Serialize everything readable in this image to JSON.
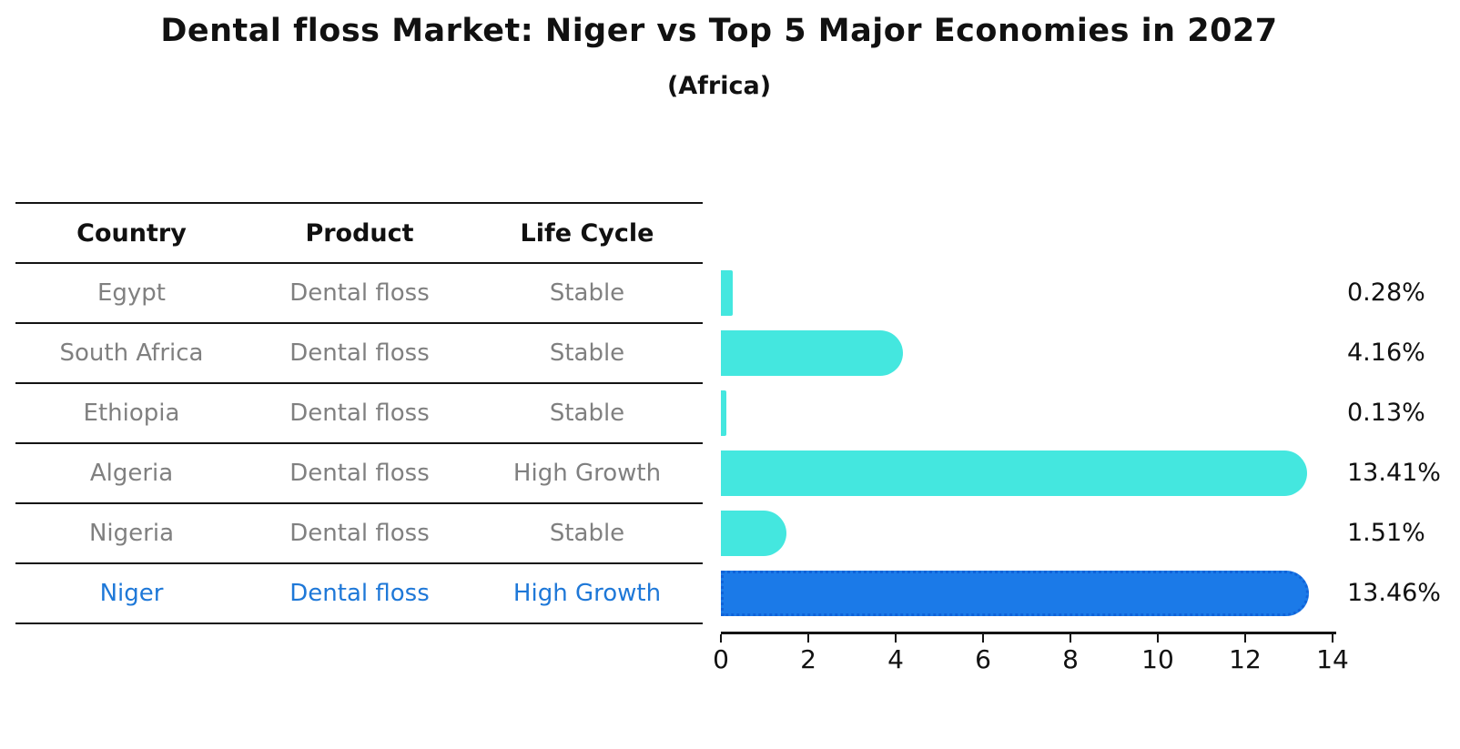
{
  "title": "Dental floss Market: Niger vs Top 5 Major Economies in 2027",
  "subtitle": "(Africa)",
  "table": {
    "headers": [
      "Country",
      "Product",
      "Life Cycle"
    ],
    "rows": [
      {
        "country": "Egypt",
        "product": "Dental floss",
        "life_cycle": "Stable",
        "highlight": false
      },
      {
        "country": "South Africa",
        "product": "Dental floss",
        "life_cycle": "Stable",
        "highlight": false
      },
      {
        "country": "Ethiopia",
        "product": "Dental floss",
        "life_cycle": "Stable",
        "highlight": false
      },
      {
        "country": "Algeria",
        "product": "Dental floss",
        "life_cycle": "High Growth",
        "highlight": false
      },
      {
        "country": "Nigeria",
        "product": "Dental floss",
        "life_cycle": "Stable",
        "highlight": false
      },
      {
        "country": "Niger",
        "product": "Dental floss",
        "life_cycle": "High Growth",
        "highlight": true
      }
    ]
  },
  "chart_data": {
    "type": "bar",
    "orientation": "horizontal",
    "title": "Dental floss Market: Niger vs Top 5 Major Economies in 2027",
    "subtitle": "(Africa)",
    "categories": [
      "Egypt",
      "South Africa",
      "Ethiopia",
      "Algeria",
      "Nigeria",
      "Niger"
    ],
    "values": [
      0.28,
      4.16,
      0.13,
      13.41,
      1.51,
      13.46
    ],
    "value_labels": [
      "0.28%",
      "4.16%",
      "0.13%",
      "13.41%",
      "1.51%",
      "13.46%"
    ],
    "highlight_index": 5,
    "xlim": [
      0,
      14
    ],
    "x_ticks": [
      0,
      2,
      4,
      6,
      8,
      10,
      12,
      14
    ],
    "grid": "off",
    "legend": "none",
    "colors": {
      "bar": "#44E7DF",
      "highlight_bar": "#1B7AE8",
      "highlight_bar_border": "#1063D9",
      "highlight_text": "#1E78D8",
      "muted_text": "#808080",
      "axis": "#141414"
    }
  }
}
